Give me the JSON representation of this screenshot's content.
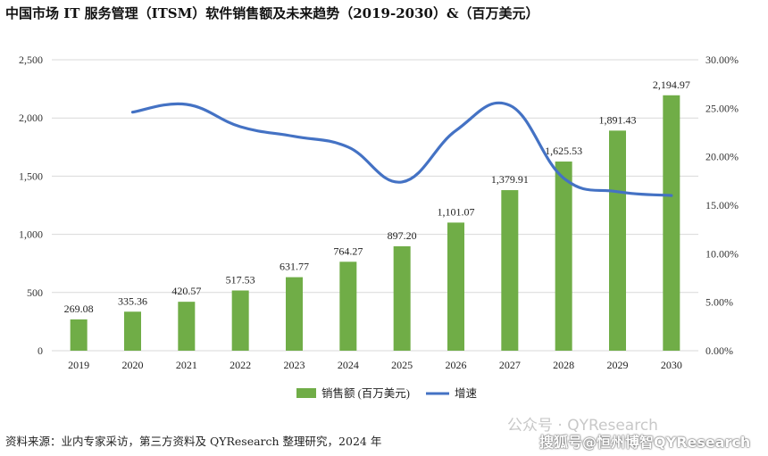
{
  "chart_data": {
    "type": "bar+line",
    "title": "中国市场 IT 服务管理（ITSM）软件销售额及未来趋势（2019-2030）&（百万美元）",
    "categories": [
      "2019",
      "2020",
      "2021",
      "2022",
      "2023",
      "2024",
      "2025",
      "2026",
      "2027",
      "2028",
      "2029",
      "2030"
    ],
    "series": [
      {
        "name": "销售额 (百万美元)",
        "type": "bar",
        "axis": "left",
        "color": "#70ad47",
        "values": [
          269.08,
          335.36,
          420.57,
          517.53,
          631.77,
          764.27,
          897.2,
          1101.07,
          1379.91,
          1625.53,
          1891.43,
          2194.97
        ],
        "labels": [
          "269.08",
          "335.36",
          "420.57",
          "517.53",
          "631.77",
          "764.27",
          "897.20",
          "1,101.07",
          "1,379.91",
          "1,625.53",
          "1,891.43",
          "2,194.97"
        ]
      },
      {
        "name": "增速",
        "type": "line",
        "axis": "right",
        "color": "#4472c4",
        "values": [
          null,
          24.6,
          25.4,
          23.1,
          22.1,
          21.0,
          17.4,
          22.7,
          25.3,
          17.8,
          16.4,
          16.0
        ]
      }
    ],
    "y_left": {
      "min": 0,
      "max": 2500,
      "ticks": [
        0,
        500,
        1000,
        1500,
        2000,
        2500
      ],
      "tick_labels": [
        "0",
        "500",
        "1,000",
        "1,500",
        "2,000",
        "2,500"
      ]
    },
    "y_right": {
      "min": 0,
      "max": 30,
      "ticks": [
        0,
        5,
        10,
        15,
        20,
        25,
        30
      ],
      "tick_labels": [
        "0.00%",
        "5.00%",
        "10.00%",
        "15.00%",
        "20.00%",
        "25.00%",
        "30.00%"
      ]
    },
    "grid": true,
    "legend": {
      "position": "bottom",
      "items": [
        "销售额 (百万美元)",
        "增速"
      ]
    }
  },
  "source_text": "资料来源：业内专家采访，第三方资料及 QYResearch 整理研究，2024 年",
  "watermark_1": "公众号 · QYResearch",
  "watermark_2": "搜狐号@恒州博智QYResearch"
}
